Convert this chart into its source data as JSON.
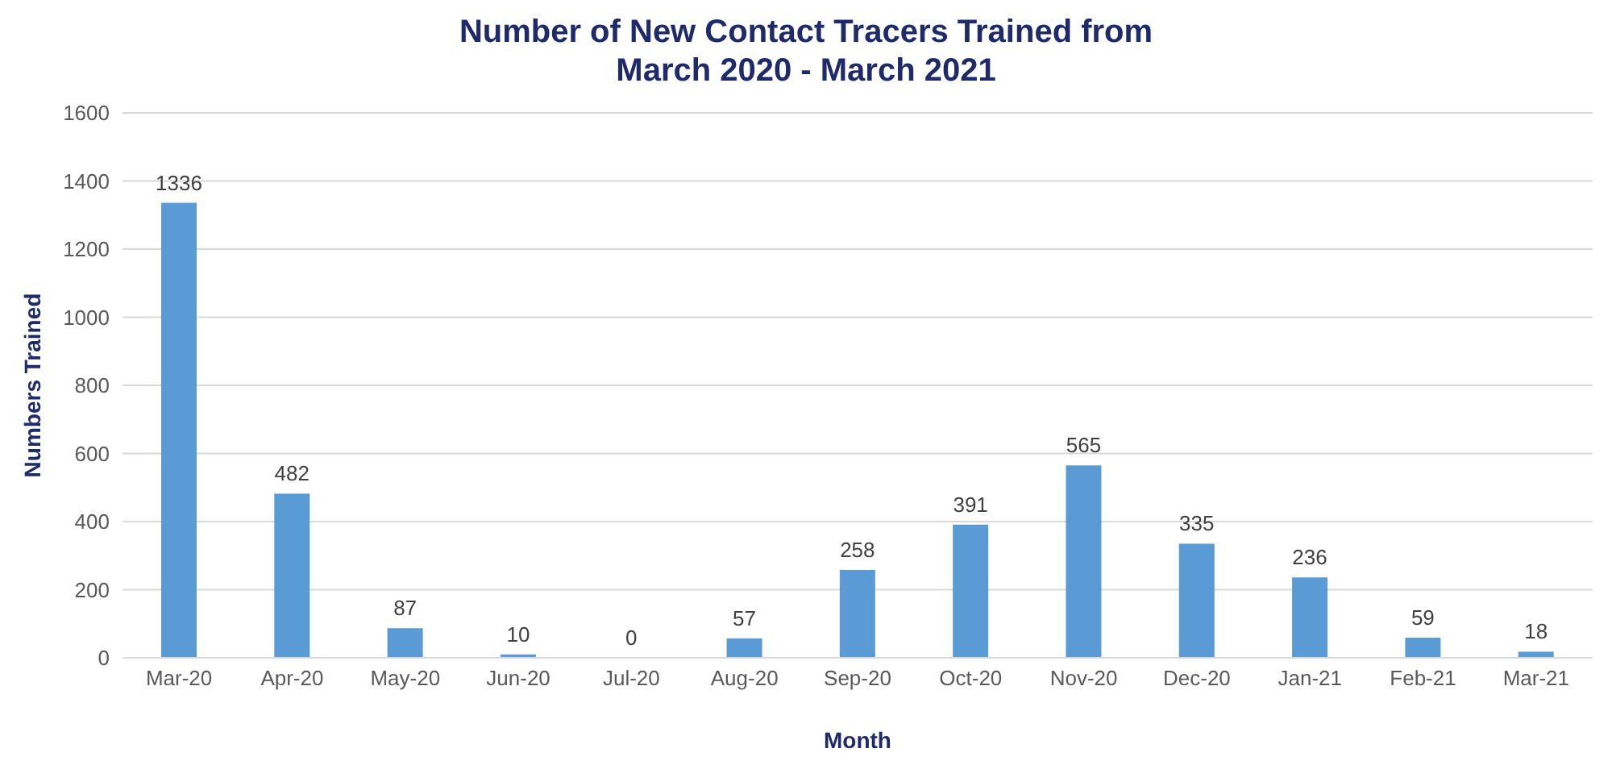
{
  "chart_data": {
    "type": "bar",
    "title": "Number of New Contact Tracers Trained from\nMarch 2020 - March 2021",
    "xlabel": "Month",
    "ylabel": "Numbers Trained",
    "categories": [
      "Mar-20",
      "Apr-20",
      "May-20",
      "Jun-20",
      "Jul-20",
      "Aug-20",
      "Sep-20",
      "Oct-20",
      "Nov-20",
      "Dec-20",
      "Jan-21",
      "Feb-21",
      "Mar-21"
    ],
    "values": [
      1336,
      482,
      87,
      10,
      0,
      57,
      258,
      391,
      565,
      335,
      236,
      59,
      18
    ],
    "color": "#5b9bd5",
    "ylim": [
      0,
      1600
    ],
    "yticks": [
      0,
      200,
      400,
      600,
      800,
      1000,
      1200,
      1400,
      1600
    ],
    "grid": "y",
    "data_labels": true,
    "legend": false
  }
}
